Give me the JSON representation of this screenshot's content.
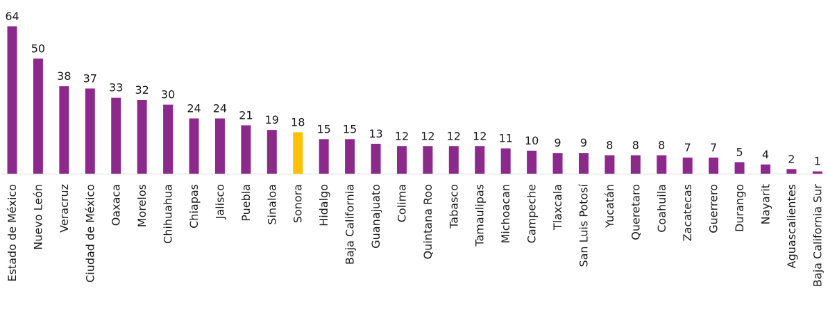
{
  "chart_data": {
    "type": "bar",
    "title": "",
    "xlabel": "",
    "ylabel": "",
    "ylim": [
      0,
      64
    ],
    "grid": false,
    "legend": "none",
    "colors": {
      "default": "#8B2A8B",
      "highlight": "#FFC000",
      "baseline": "#d9d9d9"
    },
    "highlight_category": "Sonora",
    "categories": [
      "Estado de México",
      "Nuevo León",
      "Veracruz",
      "Ciudad de México",
      "Oaxaca",
      "Morelos",
      "Chihuahua",
      "Chiapas",
      "Jalisco",
      "Puebla",
      "Sinaloa",
      "Sonora",
      "Hidalgo",
      "Baja California",
      "Guanajuato",
      "Colima",
      "Quintana Roo",
      "Tabasco",
      "Tamaulipas",
      "Michoacan",
      "Campeche",
      "Tlaxcala",
      "San Luis Potosí",
      "Yucatán",
      "Queretaro",
      "Coahuila",
      "Zacatecas",
      "Guerrero",
      "Durango",
      "Nayarit",
      "Aguascalientes",
      "Baja California Sur"
    ],
    "values": [
      64,
      50,
      38,
      37,
      33,
      32,
      30,
      24,
      24,
      21,
      19,
      18,
      15,
      15,
      13,
      12,
      12,
      12,
      12,
      11,
      10,
      9,
      9,
      8,
      8,
      8,
      7,
      7,
      5,
      4,
      2,
      1
    ]
  }
}
